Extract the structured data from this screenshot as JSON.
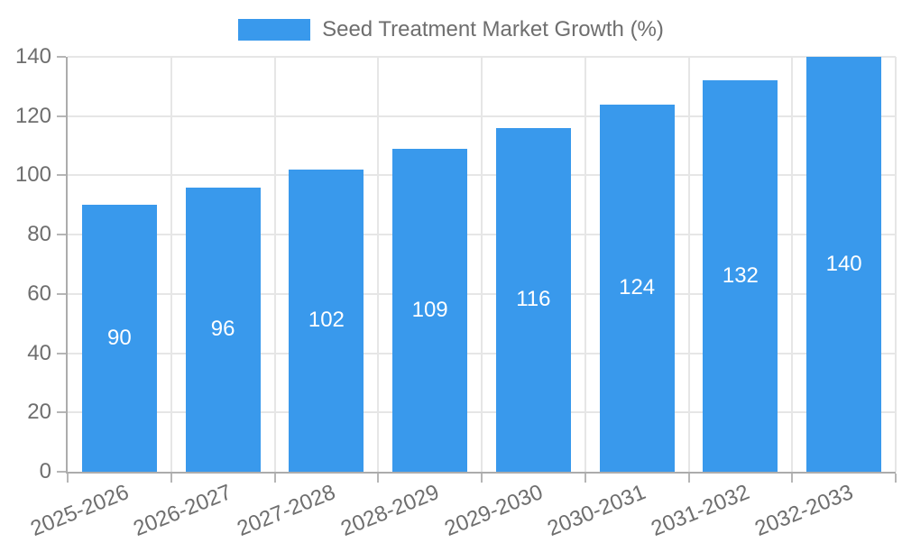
{
  "chart_data": {
    "type": "bar",
    "title": "Seed Treatment Market Growth (%)",
    "legend": [
      "Seed Treatment Market Growth (%)"
    ],
    "legend_position": "top",
    "categories": [
      "2025-2026",
      "2026-2027",
      "2027-2028",
      "2028-2029",
      "2029-2030",
      "2030-2031",
      "2031-2032",
      "2032-2033"
    ],
    "series": [
      {
        "name": "Seed Treatment Market Growth (%)",
        "values": [
          90,
          96,
          102,
          109,
          116,
          124,
          132,
          140
        ]
      }
    ],
    "value_labels_shown": true,
    "xlabel": "",
    "ylabel": "",
    "ylim": [
      0,
      140
    ],
    "yticks": [
      0,
      20,
      40,
      60,
      80,
      100,
      120,
      140
    ],
    "grid": true,
    "x_label_rotation_deg": -22
  },
  "style": {
    "bar_color": "#3999EC",
    "grid_color": "#E6E6E6",
    "axis_color": "#ACACAC",
    "tick_color": "#B6B6B6",
    "text_color": "#6E6E6E",
    "value_label_color": "#FFFFFF",
    "background": "#FFFFFF"
  }
}
